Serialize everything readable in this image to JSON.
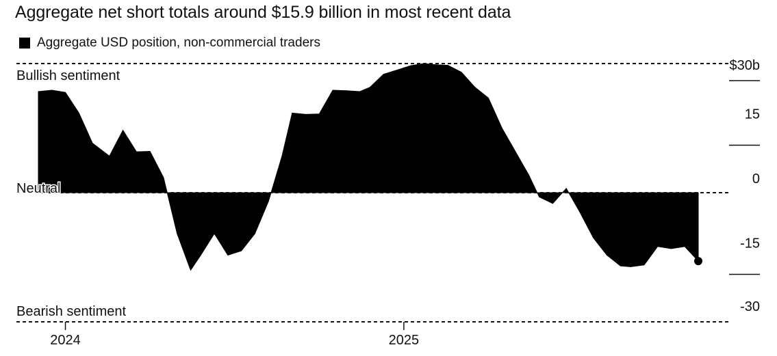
{
  "title": "Aggregate net short totals around $15.9 billion in most recent data",
  "legend": {
    "label": "Aggregate USD position, non-commercial traders",
    "color": "#000000"
  },
  "chart_data": {
    "type": "area",
    "title": "Aggregate net short totals around $15.9 billion in most recent data",
    "xlabel": "",
    "ylabel": "",
    "ylim": [
      -30,
      30
    ],
    "yticks": [
      {
        "value": 30,
        "label": "$30b"
      },
      {
        "value": 15,
        "label": "15"
      },
      {
        "value": 0,
        "label": "0"
      },
      {
        "value": -15,
        "label": "-15"
      },
      {
        "value": -30,
        "label": "-30"
      }
    ],
    "xticks": [
      {
        "value": 2024.0,
        "label": "2024"
      },
      {
        "value": 2025.0,
        "label": "2025"
      }
    ],
    "annotations": {
      "bullish": "Bullish sentiment",
      "neutral": "Neutral",
      "bearish": "Bearish sentiment"
    },
    "reference_lines": [
      30,
      0,
      -30
    ],
    "grid": false,
    "series": [
      {
        "name": "Aggregate USD position, non-commercial traders",
        "color": "#000000",
        "x": [
          2023.92,
          2023.96,
          2024.0,
          2024.04,
          2024.08,
          2024.13,
          2024.17,
          2024.21,
          2024.25,
          2024.29,
          2024.33,
          2024.37,
          2024.4,
          2024.44,
          2024.48,
          2024.52,
          2024.56,
          2024.6,
          2024.64,
          2024.67,
          2024.71,
          2024.75,
          2024.79,
          2024.83,
          2024.87,
          2024.9,
          2024.94,
          2024.98,
          2025.02,
          2025.06,
          2025.1,
          2025.13,
          2025.17,
          2025.21,
          2025.25,
          2025.29,
          2025.33,
          2025.37,
          2025.4,
          2025.44,
          2025.48,
          2025.52,
          2025.56,
          2025.6,
          2025.64,
          2025.67,
          2025.71,
          2025.75,
          2025.79,
          2025.83,
          2025.87
        ],
        "values": [
          23.5,
          23.8,
          23.3,
          18.5,
          11.5,
          8.5,
          14.5,
          9.5,
          9.6,
          3.5,
          -9.5,
          -18.0,
          -14.5,
          -9.5,
          -14.5,
          -13.5,
          -9.5,
          -2.0,
          8.5,
          18.5,
          18.2,
          18.3,
          23.8,
          23.7,
          23.5,
          24.5,
          27.5,
          28.5,
          29.5,
          30.0,
          29.7,
          29.6,
          28.0,
          24.5,
          22.0,
          15.0,
          9.5,
          4.0,
          -1.0,
          -2.5,
          1.0,
          -4.5,
          -10.5,
          -14.5,
          -17.0,
          -17.2,
          -16.8,
          -12.5,
          -13.0,
          -12.5,
          -15.9
        ]
      }
    ]
  }
}
